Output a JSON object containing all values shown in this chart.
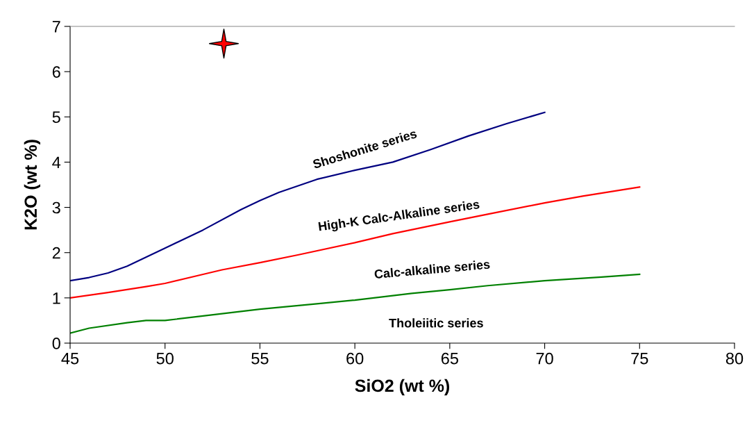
{
  "chart_data": {
    "type": "line",
    "xlabel": "SiO2 (wt %)",
    "ylabel": "K2O (wt %)",
    "xlim": [
      45,
      80
    ],
    "xticks": [
      45,
      50,
      55,
      60,
      65,
      70,
      75,
      80
    ],
    "ylim": [
      0,
      7
    ],
    "yticks": [
      0,
      1,
      2,
      3,
      4,
      5,
      6,
      7
    ],
    "grid": false,
    "legend": false,
    "series": [
      {
        "color": "#000080",
        "x": [
          45,
          46,
          47,
          48,
          49,
          50,
          52,
          54,
          55,
          56,
          58,
          60,
          62,
          64,
          66,
          68,
          70
        ],
        "values": [
          1.38,
          1.45,
          1.55,
          1.7,
          1.9,
          2.1,
          2.5,
          2.95,
          3.15,
          3.33,
          3.62,
          3.82,
          4.0,
          4.28,
          4.58,
          4.85,
          5.1
        ]
      },
      {
        "color": "#ff0000",
        "x": [
          45,
          47,
          49,
          50,
          52,
          53,
          55,
          57,
          60,
          62,
          65,
          67,
          70,
          72,
          75
        ],
        "values": [
          1.0,
          1.12,
          1.25,
          1.32,
          1.52,
          1.62,
          1.78,
          1.95,
          2.22,
          2.42,
          2.68,
          2.85,
          3.1,
          3.25,
          3.45
        ]
      },
      {
        "color": "#008000",
        "x": [
          45,
          46,
          48,
          49,
          50,
          52,
          55,
          58,
          60,
          63,
          65,
          67,
          70,
          73,
          75
        ],
        "values": [
          0.22,
          0.33,
          0.45,
          0.5,
          0.5,
          0.6,
          0.75,
          0.87,
          0.95,
          1.1,
          1.18,
          1.27,
          1.38,
          1.46,
          1.52
        ]
      },
      {
        "type": "scatter",
        "marker": "star",
        "color": "#ff0000",
        "x": [
          53.1
        ],
        "values": [
          6.62
        ]
      }
    ],
    "annotations": [
      "Shoshonite series",
      "High-K Calc-Alkaline series",
      "Calc-alkaline series",
      "Tholeiitic series"
    ]
  }
}
